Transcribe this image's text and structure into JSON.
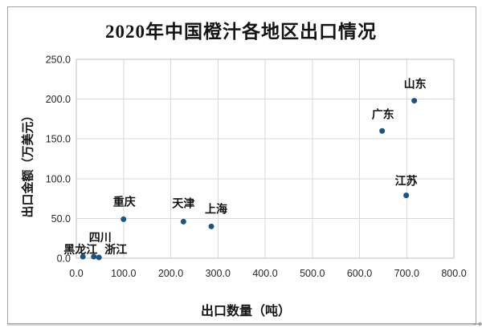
{
  "chart_data": {
    "type": "scatter",
    "title": "2020年中国橙汁各地区出口情况",
    "xlabel": "出口数量（吨）",
    "ylabel": "出口金额（万美元）",
    "xlim": [
      0,
      800
    ],
    "ylim": [
      0,
      250
    ],
    "x_tick_labels": [
      "0.0",
      "100.0",
      "200.0",
      "300.0",
      "400.0",
      "500.0",
      "600.0",
      "700.0",
      "800.0"
    ],
    "y_tick_labels": [
      "0.0",
      "50.0",
      "100.0",
      "150.0",
      "200.0",
      "250.0"
    ],
    "grid": true,
    "legend_position": "none",
    "marker": {
      "shape": "circle",
      "color": "#1c5380",
      "radius": 3.5
    },
    "points": [
      {
        "label": "黑龙江",
        "x": 14,
        "y": 2,
        "label_offset": [
          -3,
          -4
        ]
      },
      {
        "label": "四川",
        "x": 37,
        "y": 2,
        "label_offset": [
          8,
          -19
        ]
      },
      {
        "label": "浙江",
        "x": 48,
        "y": 1,
        "label_offset": [
          21,
          -5
        ]
      },
      {
        "label": "重庆",
        "x": 100,
        "y": 49,
        "label_offset": [
          1,
          -17
        ]
      },
      {
        "label": "天津",
        "x": 227,
        "y": 46,
        "label_offset": [
          0,
          -18
        ]
      },
      {
        "label": "上海",
        "x": 286,
        "y": 40,
        "label_offset": [
          6,
          -17
        ]
      },
      {
        "label": "广东",
        "x": 648,
        "y": 160,
        "label_offset": [
          1,
          -16
        ]
      },
      {
        "label": "山东",
        "x": 716,
        "y": 198,
        "label_offset": [
          1,
          -16
        ]
      },
      {
        "label": "江苏",
        "x": 699,
        "y": 79,
        "label_offset": [
          0,
          -13
        ]
      }
    ]
  },
  "colors": {
    "accent": "#1c5380",
    "gridline": "#d9d9d9",
    "plot_border": "#bfbfbf",
    "frame_border": "#a2a2a2",
    "title_text": "#141414",
    "tick_text": "#262626",
    "label_text": "#111111"
  },
  "icons": {
    "corner_artifact_icon": "tiny-cursor-arrow"
  }
}
